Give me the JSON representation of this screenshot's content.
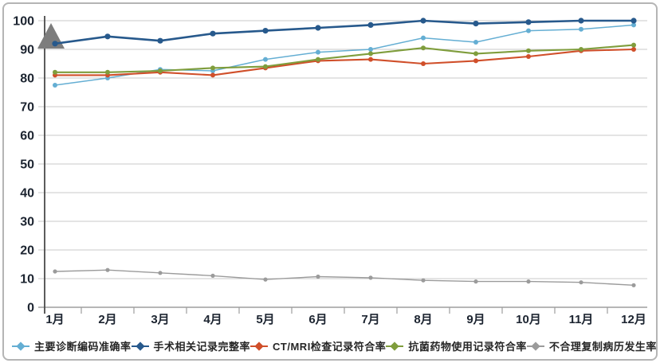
{
  "chart_data": {
    "type": "line",
    "title": "",
    "xlabel": "",
    "ylabel": "",
    "x_labels": [
      "1月",
      "2月",
      "3月",
      "4月",
      "5月",
      "6月",
      "7月",
      "8月",
      "9月",
      "10月",
      "11月",
      "12月"
    ],
    "y_ticks": [
      0,
      10,
      20,
      30,
      40,
      50,
      60,
      70,
      80,
      90,
      100
    ],
    "ylim": [
      0,
      100
    ],
    "grid": true,
    "legend_position": "bottom",
    "axis_arrow": "up",
    "series": [
      {
        "name": "主要诊断编码准确率",
        "color": "#64aed3",
        "values": [
          77.5,
          80,
          83,
          82.5,
          86.5,
          89,
          90,
          94,
          92.5,
          96.5,
          97,
          98.5
        ]
      },
      {
        "name": "手术相关记录完整率",
        "color": "#27598c",
        "values": [
          92,
          94.5,
          93,
          95.5,
          96.5,
          97.5,
          98.5,
          100,
          99,
          99.5,
          100,
          100
        ]
      },
      {
        "name": "CT/MRI检查记录符合率",
        "color": "#d04f2a",
        "values": [
          81,
          81,
          82,
          81,
          83.5,
          86,
          86.5,
          85,
          86,
          87.5,
          89.5,
          90
        ]
      },
      {
        "name": "抗菌药物使用记录符合率",
        "color": "#7f9d3c",
        "values": [
          82,
          82,
          82.5,
          83.5,
          84,
          86.5,
          88.5,
          90.5,
          88.5,
          89.5,
          90,
          91.5
        ]
      },
      {
        "name": "不合理复制病历发生率",
        "color": "#9b9b9b",
        "values": [
          12.5,
          13,
          12,
          11,
          9.7,
          10.7,
          10.3,
          9.4,
          9,
          9,
          8.7,
          7.7
        ]
      }
    ],
    "colors": {
      "gridline": "#c8c8c8",
      "axis": "#4a4a4a",
      "x_axis": "#9e9e9e",
      "tick_label": "#1c2430",
      "arrow": "#7d7d7d"
    }
  }
}
